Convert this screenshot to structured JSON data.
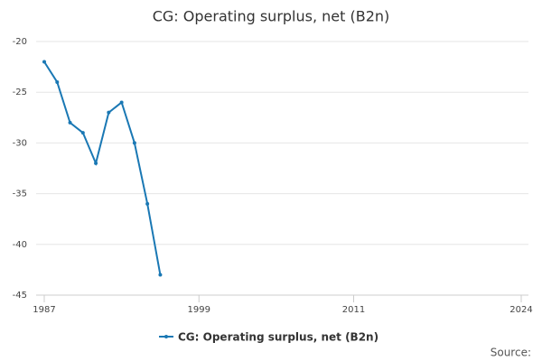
{
  "chart_data": {
    "type": "line",
    "title": "CG: Operating surplus, net (B2n)",
    "x": [
      1987,
      1988,
      1989,
      1990,
      1991,
      1992,
      1993,
      1994,
      1995,
      1996
    ],
    "series": [
      {
        "name": "CG: Operating surplus, net (B2n)",
        "color": "#1a78b4",
        "values": [
          -22,
          -24,
          -28,
          -29,
          -32,
          -27,
          -26,
          -30,
          -36,
          -43
        ]
      }
    ],
    "xlim": [
      1987,
      2024
    ],
    "xticks": [
      1987,
      1999,
      2011,
      2024
    ],
    "ylim": [
      -45,
      -20
    ],
    "yticks": [
      -45,
      -40,
      -35,
      -30,
      -25,
      -20
    ],
    "grid": true,
    "legend": "bottom",
    "source": "Source:"
  }
}
